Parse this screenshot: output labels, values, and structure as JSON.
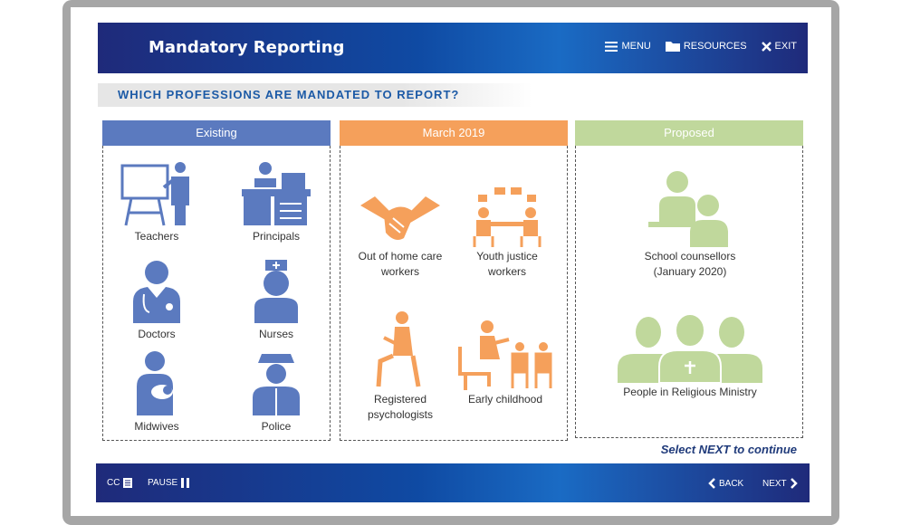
{
  "header": {
    "title": "Mandatory Reporting",
    "menu_label": "MENU",
    "resources_label": "RESOURCES",
    "exit_label": "EXIT"
  },
  "question": "WHICH PROFESSIONS ARE MANDATED TO REPORT?",
  "columns": [
    {
      "heading": "Existing",
      "items": [
        {
          "label": "Teachers",
          "icon": "teacher-icon"
        },
        {
          "label": "Principals",
          "icon": "principal-icon"
        },
        {
          "label": "Doctors",
          "icon": "doctor-icon"
        },
        {
          "label": "Nurses",
          "icon": "nurse-icon"
        },
        {
          "label": "Midwives",
          "icon": "midwife-icon"
        },
        {
          "label": "Police",
          "icon": "police-icon"
        }
      ]
    },
    {
      "heading": "March 2019",
      "items": [
        {
          "label": "Out of home care workers",
          "icon": "handshake-icon"
        },
        {
          "label": "Youth justice workers",
          "icon": "meeting-icon"
        },
        {
          "label": "Registered psychologists",
          "icon": "psychologist-icon"
        },
        {
          "label": "Early childhood",
          "icon": "early-childhood-icon"
        }
      ]
    },
    {
      "heading": "Proposed",
      "items": [
        {
          "label": "School counsellors (January 2020)",
          "icon": "counsellor-icon"
        },
        {
          "label": "People in Religious Ministry",
          "icon": "religious-ministry-icon"
        }
      ]
    }
  ],
  "hint": "Select NEXT to continue",
  "footer": {
    "cc_label": "CC",
    "pause_label": "PAUSE",
    "back_label": "BACK",
    "next_label": "NEXT"
  },
  "colors": {
    "existing": "#5b7abf",
    "march": "#f5a05b",
    "proposed": "#c0d89c",
    "bar": "#1f2a7a"
  }
}
